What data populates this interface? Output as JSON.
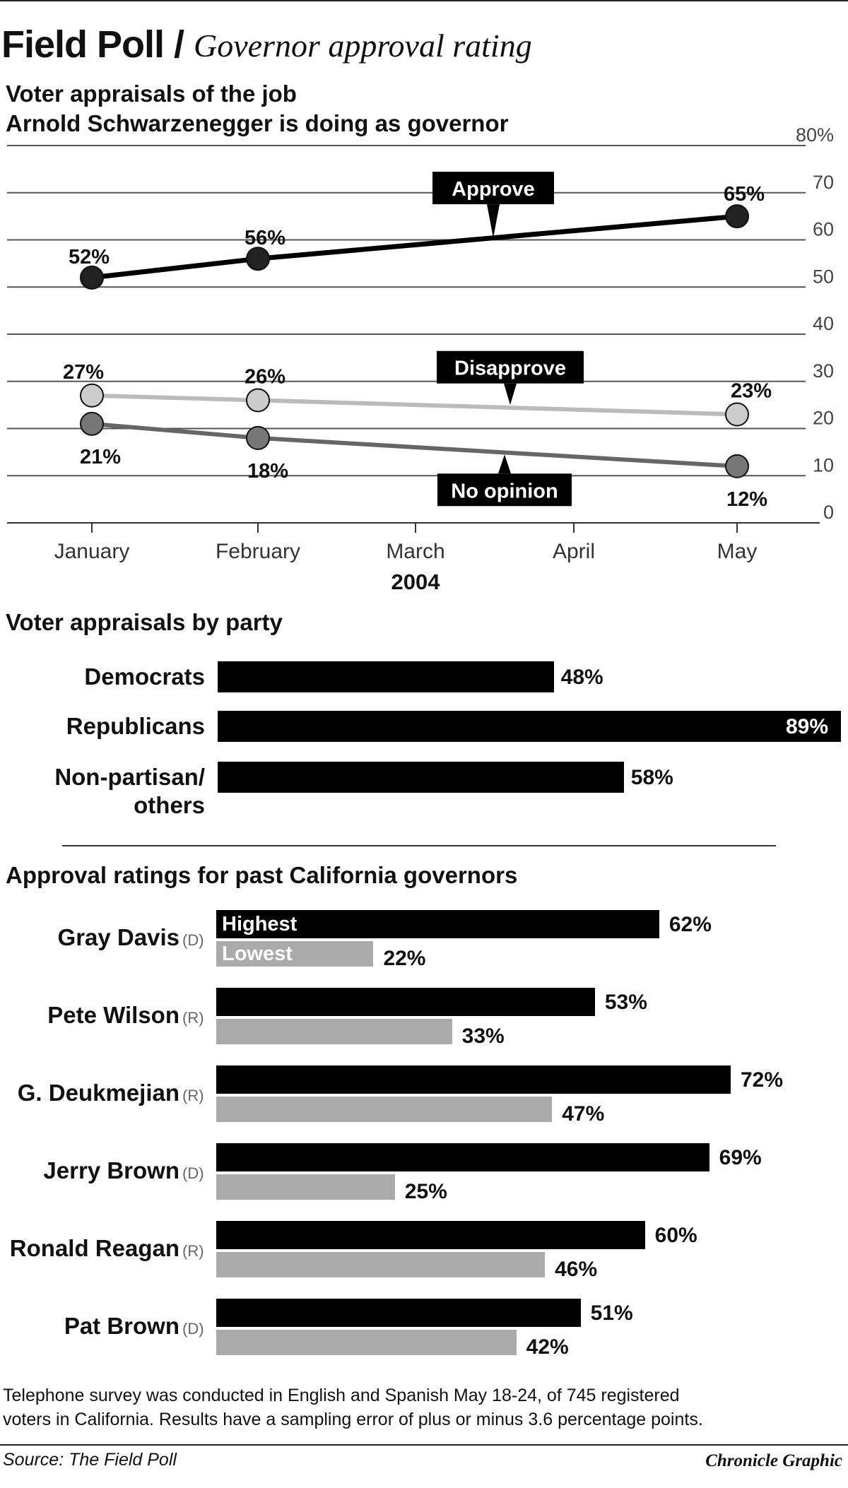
{
  "header": {
    "title": "Field Poll /",
    "subtitle": "Governor approval rating"
  },
  "chart_data": [
    {
      "type": "line",
      "title": "Voter appraisals of the job Arnold Schwarzenegger is doing as governor",
      "title_lines": [
        "Voter appraisals of the job",
        "Arnold Schwarzenegger is doing as governor"
      ],
      "x": [
        "January",
        "February",
        "March",
        "April",
        "May"
      ],
      "xlabel": "2004",
      "ylim": [
        0,
        80
      ],
      "yticks": [
        "0",
        "10",
        "20",
        "30",
        "40",
        "50",
        "60",
        "70",
        "80%"
      ],
      "grid": true,
      "series": [
        {
          "name": "Approve",
          "x": [
            "January",
            "February",
            "May"
          ],
          "values": [
            52,
            56,
            65
          ],
          "labels": [
            "52%",
            "56%",
            "65%"
          ],
          "color": "#000000",
          "marker_color": "#222222"
        },
        {
          "name": "Disapprove",
          "x": [
            "January",
            "February",
            "May"
          ],
          "values": [
            27,
            26,
            23
          ],
          "labels": [
            "27%",
            "26%",
            "23%"
          ],
          "color": "#bbbbbb",
          "marker_color": "#cccccc"
        },
        {
          "name": "No opinion",
          "x": [
            "January",
            "February",
            "May"
          ],
          "values": [
            21,
            18,
            12
          ],
          "labels": [
            "21%",
            "18%",
            "12%"
          ],
          "color": "#666666",
          "marker_color": "#777777"
        }
      ]
    },
    {
      "type": "bar",
      "orientation": "horizontal",
      "title": "Voter appraisals by party",
      "categories": [
        "Democrats",
        "Republicans",
        "Non-partisan/ others"
      ],
      "category_lines": [
        [
          "Democrats"
        ],
        [
          "Republicans"
        ],
        [
          "Non-partisan/",
          "others"
        ]
      ],
      "values": [
        48,
        89,
        58
      ],
      "labels": [
        "48%",
        "89%",
        "58%"
      ],
      "color": "#000000"
    },
    {
      "type": "bar",
      "orientation": "horizontal",
      "title": "Approval ratings for past California governors",
      "categories": [
        "Gray Davis",
        "Pete Wilson",
        "G. Deukmejian",
        "Jerry Brown",
        "Ronald Reagan",
        "Pat Brown"
      ],
      "parties": [
        "(D)",
        "(R)",
        "(R)",
        "(D)",
        "(R)",
        "(D)"
      ],
      "series": [
        {
          "name": "Highest",
          "values": [
            62,
            53,
            72,
            69,
            60,
            51
          ],
          "labels": [
            "62%",
            "53%",
            "72%",
            "69%",
            "60%",
            "51%"
          ],
          "color": "#000000"
        },
        {
          "name": "Lowest",
          "values": [
            22,
            33,
            47,
            25,
            46,
            42
          ],
          "labels": [
            "22%",
            "33%",
            "47%",
            "25%",
            "46%",
            "42%"
          ],
          "color": "#aaaaaa"
        }
      ]
    }
  ],
  "footer": {
    "note_line1": "Telephone survey was conducted in English and Spanish May 18-24, of 745 registered",
    "note_line2": "voters in California. Results have a sampling error of plus or minus 3.6 percentage points.",
    "source": "Source: The Field Poll",
    "credit": "Chronicle Graphic"
  }
}
